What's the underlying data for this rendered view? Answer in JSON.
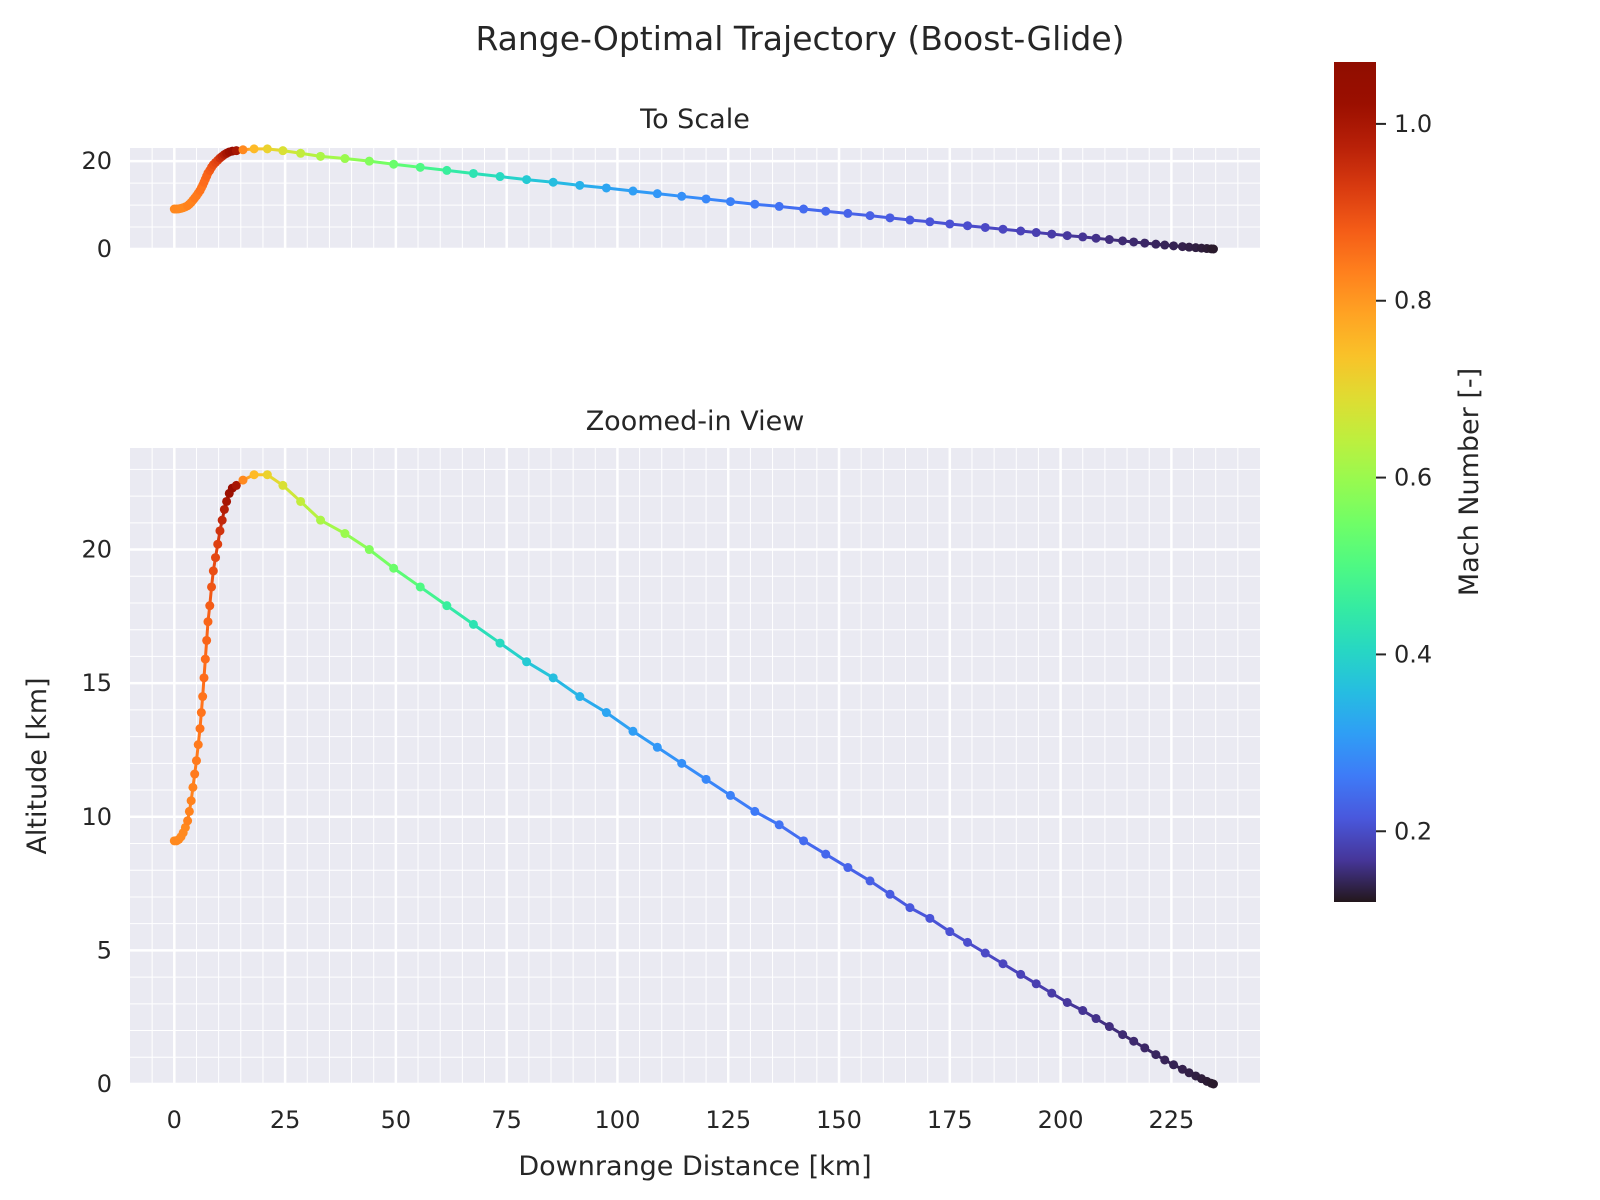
{
  "figure": {
    "title": "Range-Optimal Trajectory (Boost-Glide)"
  },
  "colorbar": {
    "label": "Mach Number [-]",
    "colormap": "turbo",
    "range": [
      0.12,
      1.07
    ],
    "ticks": [
      0.2,
      0.4,
      0.6,
      0.8,
      1.0
    ],
    "tick_labels": [
      "0.2",
      "0.4",
      "0.6",
      "0.8",
      "1.0"
    ]
  },
  "panels": {
    "top": {
      "title": "To Scale",
      "xlim": [
        -10,
        245
      ],
      "ylim": [
        0,
        23
      ],
      "yticks": [
        0,
        20
      ],
      "ytick_labels": [
        "0",
        "20"
      ],
      "aspect": "equal"
    },
    "bottom": {
      "title": "Zoomed-in View",
      "xlabel": "Downrange Distance [km]",
      "ylabel": "Altitude [km]",
      "xlim": [
        -10,
        245
      ],
      "ylim": [
        0,
        23.8
      ],
      "xticks": [
        0,
        25,
        50,
        75,
        100,
        125,
        150,
        175,
        200,
        225
      ],
      "xtick_labels": [
        "0",
        "25",
        "50",
        "75",
        "100",
        "125",
        "150",
        "175",
        "200",
        "225"
      ],
      "yticks": [
        0,
        5,
        10,
        15,
        20
      ],
      "ytick_labels": [
        "0",
        "5",
        "10",
        "15",
        "20"
      ]
    }
  },
  "style": {
    "axes_facecolor": "#eaeaf2",
    "grid_color": "#ffffff",
    "text_color": "#262626",
    "grid": "major and minor"
  },
  "chart_data": {
    "type": "line",
    "x_label": "Downrange Distance [km]",
    "y_label": "Altitude [km]",
    "color_label": "Mach Number [-]",
    "points": [
      [
        0.0,
        9.1,
        0.82
      ],
      [
        0.5,
        9.1,
        0.82
      ],
      [
        1.0,
        9.15,
        0.82
      ],
      [
        1.5,
        9.25,
        0.82
      ],
      [
        2.0,
        9.4,
        0.82
      ],
      [
        2.5,
        9.6,
        0.82
      ],
      [
        3.0,
        9.85,
        0.83
      ],
      [
        3.4,
        10.2,
        0.83
      ],
      [
        3.8,
        10.6,
        0.83
      ],
      [
        4.2,
        11.1,
        0.83
      ],
      [
        4.6,
        11.6,
        0.84
      ],
      [
        5.0,
        12.1,
        0.84
      ],
      [
        5.4,
        12.7,
        0.84
      ],
      [
        5.8,
        13.3,
        0.85
      ],
      [
        6.1,
        13.9,
        0.85
      ],
      [
        6.4,
        14.5,
        0.85
      ],
      [
        6.7,
        15.2,
        0.86
      ],
      [
        7.0,
        15.9,
        0.86
      ],
      [
        7.3,
        16.6,
        0.87
      ],
      [
        7.6,
        17.3,
        0.87
      ],
      [
        8.0,
        17.9,
        0.88
      ],
      [
        8.4,
        18.6,
        0.89
      ],
      [
        8.8,
        19.2,
        0.9
      ],
      [
        9.3,
        19.7,
        0.91
      ],
      [
        9.8,
        20.2,
        0.92
      ],
      [
        10.3,
        20.7,
        0.94
      ],
      [
        10.8,
        21.1,
        0.96
      ],
      [
        11.3,
        21.5,
        0.98
      ],
      [
        11.8,
        21.8,
        1.0
      ],
      [
        12.4,
        22.1,
        1.02
      ],
      [
        13.1,
        22.3,
        1.03
      ],
      [
        14.0,
        22.4,
        1.0
      ],
      [
        15.5,
        22.6,
        0.82
      ],
      [
        18.0,
        22.8,
        0.75
      ],
      [
        21.0,
        22.8,
        0.71
      ],
      [
        24.5,
        22.4,
        0.68
      ],
      [
        28.5,
        21.8,
        0.65
      ],
      [
        33.0,
        21.1,
        0.62
      ],
      [
        38.5,
        20.6,
        0.6
      ],
      [
        44.0,
        20.0,
        0.57
      ],
      [
        49.5,
        19.3,
        0.54
      ],
      [
        55.5,
        18.6,
        0.5
      ],
      [
        61.5,
        17.9,
        0.46
      ],
      [
        67.5,
        17.2,
        0.43
      ],
      [
        73.5,
        16.5,
        0.41
      ],
      [
        79.5,
        15.8,
        0.38
      ],
      [
        85.5,
        15.2,
        0.36
      ],
      [
        91.5,
        14.5,
        0.34
      ],
      [
        97.5,
        13.9,
        0.32
      ],
      [
        103.5,
        13.2,
        0.31
      ],
      [
        109.0,
        12.6,
        0.3
      ],
      [
        114.5,
        12.0,
        0.29
      ],
      [
        120.0,
        11.4,
        0.28
      ],
      [
        125.5,
        10.8,
        0.27
      ],
      [
        131.0,
        10.2,
        0.26
      ],
      [
        136.5,
        9.7,
        0.25
      ],
      [
        142.0,
        9.1,
        0.24
      ],
      [
        147.0,
        8.6,
        0.235
      ],
      [
        152.0,
        8.1,
        0.23
      ],
      [
        157.0,
        7.6,
        0.225
      ],
      [
        161.5,
        7.1,
        0.22
      ],
      [
        166.0,
        6.6,
        0.215
      ],
      [
        170.5,
        6.2,
        0.21
      ],
      [
        175.0,
        5.7,
        0.205
      ],
      [
        179.0,
        5.3,
        0.2
      ],
      [
        183.0,
        4.9,
        0.195
      ],
      [
        187.0,
        4.5,
        0.19
      ],
      [
        191.0,
        4.1,
        0.185
      ],
      [
        194.5,
        3.75,
        0.18
      ],
      [
        198.0,
        3.4,
        0.175
      ],
      [
        201.5,
        3.05,
        0.17
      ],
      [
        205.0,
        2.75,
        0.165
      ],
      [
        208.0,
        2.45,
        0.16
      ],
      [
        211.0,
        2.15,
        0.155
      ],
      [
        214.0,
        1.85,
        0.15
      ],
      [
        216.5,
        1.6,
        0.148
      ],
      [
        219.0,
        1.35,
        0.145
      ],
      [
        221.5,
        1.1,
        0.142
      ],
      [
        223.5,
        0.9,
        0.14
      ],
      [
        225.5,
        0.72,
        0.138
      ],
      [
        227.5,
        0.55,
        0.136
      ],
      [
        229.0,
        0.42,
        0.134
      ],
      [
        230.5,
        0.3,
        0.132
      ],
      [
        231.8,
        0.2,
        0.13
      ],
      [
        233.0,
        0.1,
        0.128
      ],
      [
        234.0,
        0.03,
        0.126
      ],
      [
        234.5,
        0.0,
        0.125
      ]
    ]
  }
}
